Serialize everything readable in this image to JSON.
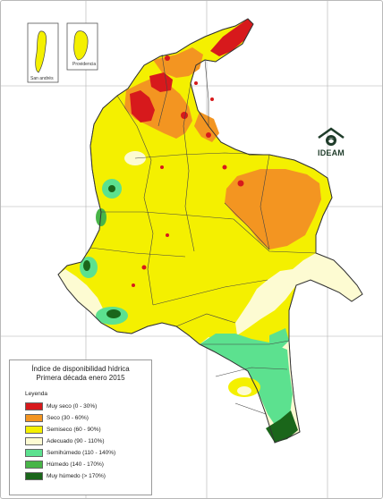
{
  "map": {
    "inset_labels": {
      "san_andres": "San andrés",
      "providencia": "Providencia"
    },
    "logo_text": "IDEAM",
    "logo_icon": "ideam-house-logo-icon"
  },
  "legend": {
    "title_line1": "Índice de disponibilidad hídrica",
    "title_line2": "Primera década enero 2015",
    "heading": "Leyenda",
    "items": [
      {
        "label": "Muy seco (0 - 30%)",
        "color": "#d7191c"
      },
      {
        "label": "Seco (30 - 60%)",
        "color": "#f39521"
      },
      {
        "label": "Semiseco (60 - 90%)",
        "color": "#f4f000"
      },
      {
        "label": "Adecuado (90 - 110%)",
        "color": "#fdfbd2"
      },
      {
        "label": "Semihúmedo (110 - 140%)",
        "color": "#5ce18f"
      },
      {
        "label": "Húmedo (140 - 170%)",
        "color": "#48b548"
      },
      {
        "label": "Muy húmedo (> 170%)",
        "color": "#1a661a"
      }
    ]
  }
}
